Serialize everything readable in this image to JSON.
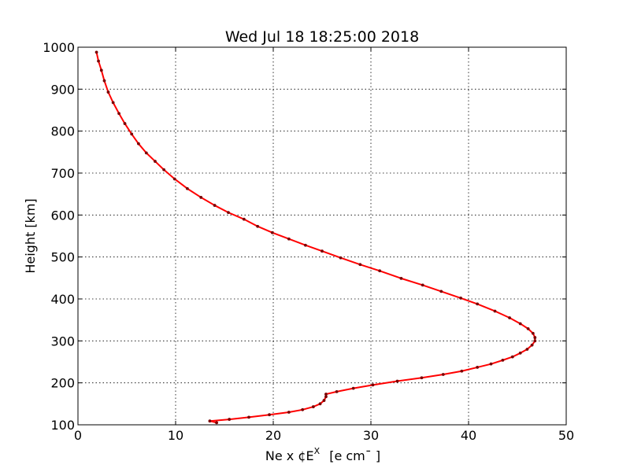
{
  "chart_data": {
    "type": "line",
    "title": "Wed Jul 18 18:25:00 2018",
    "xlabel": "Ne x ¢E",
    "xlabel_superscript": "X",
    "xlabel_units": "[e cm¯ ]",
    "ylabel": "Height [km]",
    "xlim": [
      0,
      50
    ],
    "ylim": [
      100,
      1000
    ],
    "xticks": [
      "0",
      "10",
      "20",
      "30",
      "40",
      "50"
    ],
    "yticks": [
      "100",
      "200",
      "300",
      "400",
      "500",
      "600",
      "700",
      "800",
      "900",
      "1000"
    ],
    "grid": true,
    "line_color": "#ff0000",
    "marker_color": "#7a0000",
    "series": [
      {
        "points": [
          [
            14.2,
            105
          ],
          [
            13.5,
            109
          ],
          [
            15.5,
            113
          ],
          [
            17.5,
            118
          ],
          [
            19.6,
            124
          ],
          [
            21.6,
            130
          ],
          [
            23.0,
            136
          ],
          [
            24.1,
            143
          ],
          [
            24.8,
            150
          ],
          [
            25.2,
            158
          ],
          [
            25.4,
            167
          ],
          [
            25.4,
            173
          ],
          [
            26.5,
            179
          ],
          [
            28.2,
            187
          ],
          [
            30.2,
            195
          ],
          [
            32.7,
            204
          ],
          [
            35.2,
            212
          ],
          [
            37.4,
            220
          ],
          [
            39.3,
            228
          ],
          [
            40.9,
            237
          ],
          [
            42.3,
            245
          ],
          [
            43.5,
            254
          ],
          [
            44.5,
            262
          ],
          [
            45.3,
            271
          ],
          [
            46.0,
            280
          ],
          [
            46.5,
            290
          ],
          [
            46.8,
            300
          ],
          [
            46.8,
            308
          ],
          [
            46.6,
            318
          ],
          [
            46.1,
            329
          ],
          [
            45.3,
            341
          ],
          [
            44.2,
            355
          ],
          [
            42.7,
            371
          ],
          [
            40.9,
            388
          ],
          [
            39.2,
            402
          ],
          [
            37.2,
            418
          ],
          [
            35.3,
            433
          ],
          [
            33.1,
            449
          ],
          [
            30.9,
            467
          ],
          [
            28.9,
            482
          ],
          [
            26.9,
            498
          ],
          [
            25.0,
            514
          ],
          [
            23.3,
            528
          ],
          [
            21.6,
            543
          ],
          [
            19.9,
            558
          ],
          [
            18.4,
            573
          ],
          [
            17.0,
            590
          ],
          [
            15.4,
            606
          ],
          [
            14.0,
            623
          ],
          [
            12.6,
            642
          ],
          [
            11.2,
            663
          ],
          [
            9.9,
            686
          ],
          [
            8.8,
            708
          ],
          [
            7.9,
            728
          ],
          [
            7.0,
            748
          ],
          [
            6.2,
            770
          ],
          [
            5.5,
            793
          ],
          [
            4.8,
            818
          ],
          [
            4.2,
            842
          ],
          [
            3.6,
            868
          ],
          [
            3.1,
            893
          ],
          [
            2.7,
            920
          ],
          [
            2.4,
            945
          ],
          [
            2.1,
            967
          ],
          [
            1.9,
            988
          ]
        ]
      }
    ]
  }
}
